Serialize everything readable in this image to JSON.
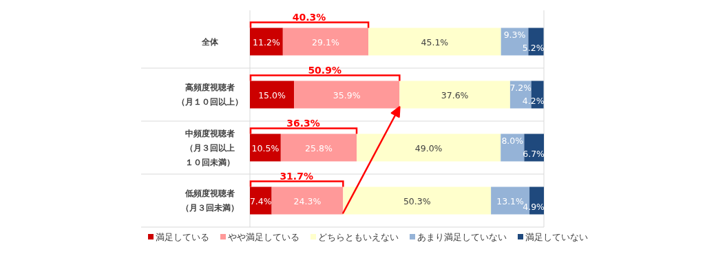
{
  "chart_data": {
    "type": "bar",
    "orientation": "horizontal",
    "stacked": true,
    "legend": "bottom",
    "categories": [
      "全体",
      "高頻度視聴者（月１０回以上）",
      "中頻度視聴者（月３回以上１０回未満）",
      "低頻度視聴者（月３回未満）"
    ],
    "series": [
      {
        "name": "満足している",
        "color": "#cc0000",
        "values": [
          11.2,
          15.0,
          10.5,
          7.4
        ],
        "value_labels": [
          "11.2%",
          "15.0%",
          "10.5%",
          "7.4%"
        ]
      },
      {
        "name": "やや満足している",
        "color": "#ff9999",
        "values": [
          29.1,
          35.9,
          25.8,
          24.3
        ],
        "value_labels": [
          "29.1%",
          "35.9%",
          "25.8%",
          "24.3%"
        ]
      },
      {
        "name": "どちらともいえない",
        "color": "#ffffcc",
        "values": [
          45.1,
          37.6,
          49.0,
          50.3
        ],
        "value_labels": [
          "45.1%",
          "37.6%",
          "49.0%",
          "50.3%"
        ]
      },
      {
        "name": "あまり満足していない",
        "color": "#95b3d7",
        "values": [
          9.3,
          7.2,
          8.0,
          13.1
        ],
        "value_labels": [
          "9.3%",
          "7.2%",
          "8.0%",
          "13.1%"
        ]
      },
      {
        "name": "満足していない",
        "color": "#1f497d",
        "values": [
          5.2,
          4.2,
          6.7,
          4.9
        ],
        "value_labels": [
          "5.2%",
          "4.2%",
          "6.7%",
          "4.9%"
        ]
      }
    ],
    "annotations": [
      "40.3%",
      "50.9%",
      "36.3%",
      "31.7%"
    ]
  }
}
